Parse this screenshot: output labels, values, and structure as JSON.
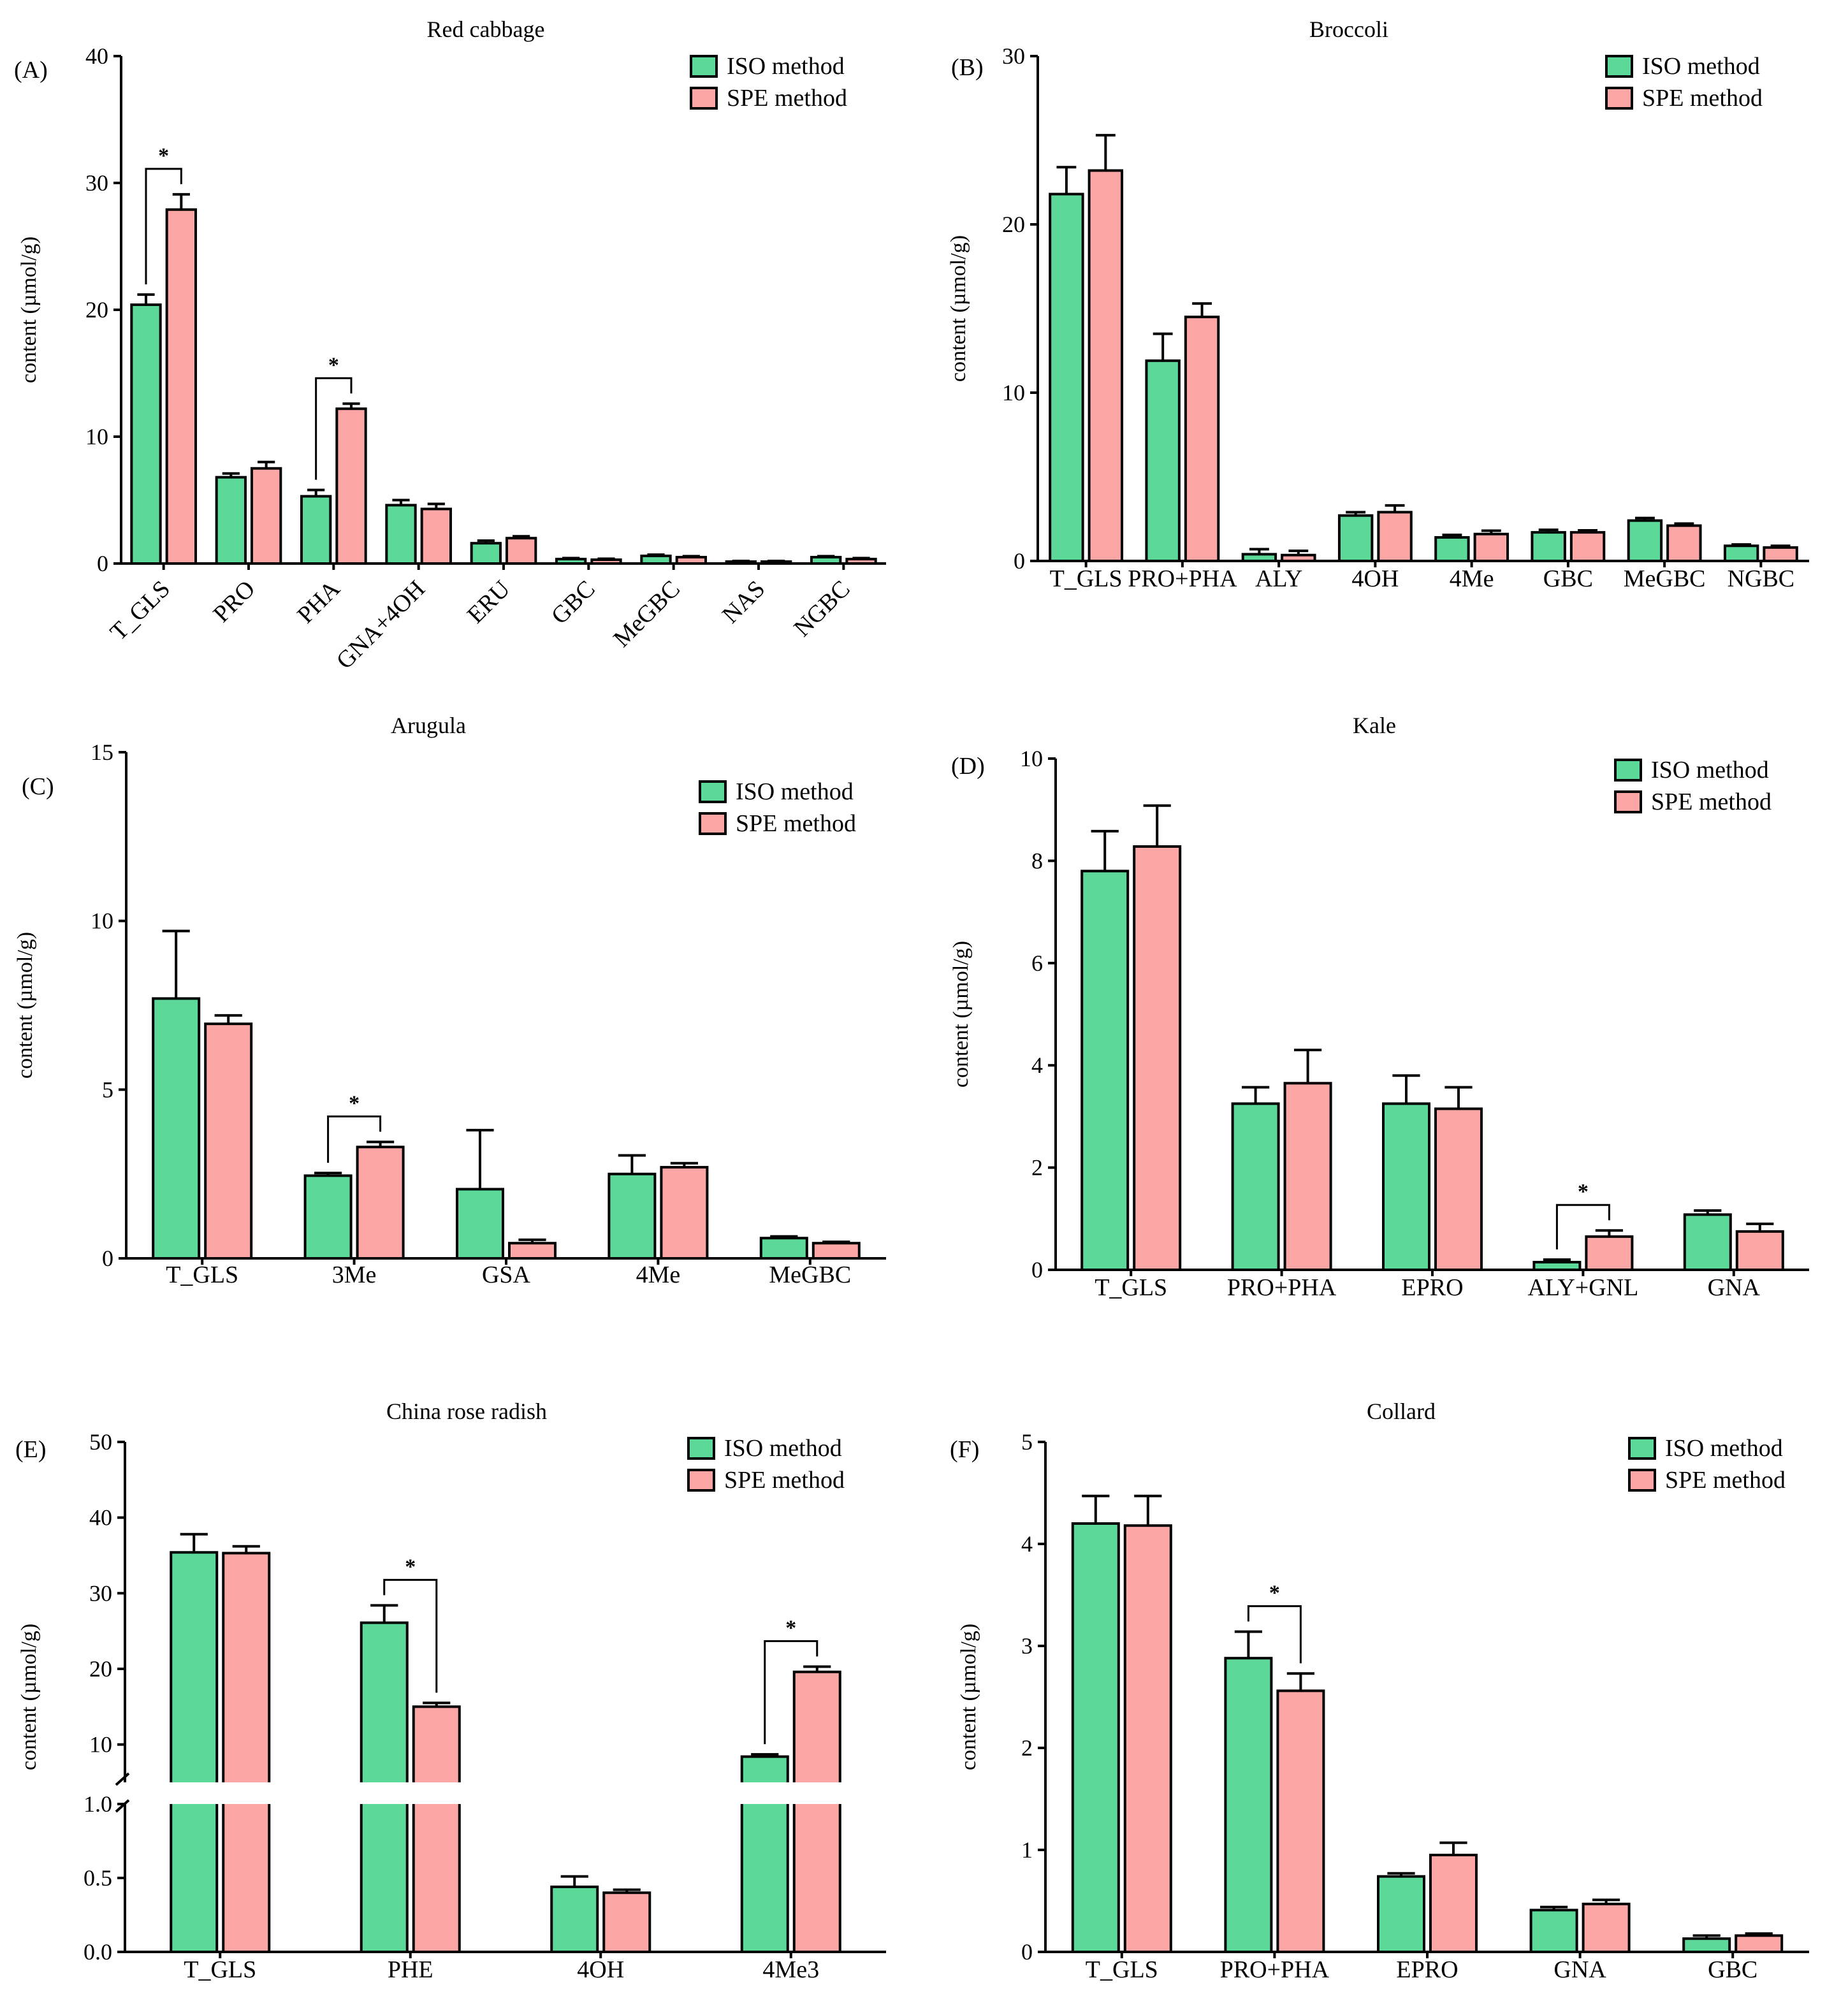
{
  "legend": {
    "iso": "ISO method",
    "spe": "SPE method"
  },
  "colors": {
    "iso": "#5cd898",
    "spe": "#fda6a6",
    "stroke": "#000000"
  },
  "chart_data": [
    {
      "id": "A",
      "panel_label": "(A)",
      "type": "bar",
      "title": "Red cabbage",
      "ylabel": "content (µmol/g)",
      "ylim": [
        0,
        40
      ],
      "yticks": [
        "0",
        "10",
        "20",
        "30",
        "40"
      ],
      "rotate_labels": true,
      "categories": [
        "T_GLS",
        "PRO",
        "PHA",
        "GNA+4OH",
        "ERU",
        "GBC",
        "MeGBC",
        "NAS",
        "NGBC"
      ],
      "series": [
        {
          "name": "ISO method",
          "values": [
            20.4,
            6.8,
            5.3,
            4.6,
            1.6,
            0.35,
            0.6,
            0.15,
            0.5
          ],
          "errors": [
            0.8,
            0.3,
            0.5,
            0.4,
            0.2,
            0.08,
            0.1,
            0.05,
            0.08
          ]
        },
        {
          "name": "SPE method",
          "values": [
            27.9,
            7.5,
            12.2,
            4.3,
            2.0,
            0.3,
            0.5,
            0.15,
            0.35
          ],
          "errors": [
            1.2,
            0.5,
            0.4,
            0.4,
            0.15,
            0.08,
            0.08,
            0.05,
            0.08
          ]
        }
      ],
      "significance": [
        {
          "category_index": 0,
          "label": "*"
        },
        {
          "category_index": 2,
          "label": "*"
        }
      ]
    },
    {
      "id": "B",
      "panel_label": "(B)",
      "type": "bar",
      "title": "Broccoli",
      "ylabel": "content (µmol/g)",
      "ylim": [
        0,
        30
      ],
      "yticks": [
        "0",
        "10",
        "20",
        "30"
      ],
      "rotate_labels": false,
      "categories": [
        "T_GLS",
        "PRO+PHA",
        "ALY",
        "4OH",
        "4Me",
        "GBC",
        "MeGBC",
        "NGBC"
      ],
      "series": [
        {
          "name": "ISO method",
          "values": [
            21.8,
            11.9,
            0.4,
            2.7,
            1.4,
            1.7,
            2.4,
            0.9
          ],
          "errors": [
            1.6,
            1.6,
            0.3,
            0.2,
            0.15,
            0.15,
            0.15,
            0.08
          ]
        },
        {
          "name": "SPE method",
          "values": [
            23.2,
            14.5,
            0.35,
            2.9,
            1.6,
            1.7,
            2.1,
            0.8
          ],
          "errors": [
            2.1,
            0.8,
            0.25,
            0.4,
            0.2,
            0.12,
            0.12,
            0.1
          ]
        }
      ],
      "significance": []
    },
    {
      "id": "C",
      "panel_label": "(C)",
      "type": "bar",
      "title": "Arugula",
      "ylabel": "content (µmol/g)",
      "ylim": [
        0,
        15
      ],
      "yticks": [
        "0",
        "5",
        "10",
        "15"
      ],
      "rotate_labels": false,
      "categories": [
        "T_GLS",
        "3Me",
        "GSA",
        "4Me",
        "MeGBC"
      ],
      "series": [
        {
          "name": "ISO method",
          "values": [
            7.7,
            2.45,
            2.05,
            2.5,
            0.6
          ],
          "errors": [
            2.0,
            0.08,
            1.75,
            0.55,
            0.05
          ]
        },
        {
          "name": "SPE method",
          "values": [
            6.95,
            3.3,
            0.45,
            2.7,
            0.45
          ],
          "errors": [
            0.25,
            0.15,
            0.1,
            0.12,
            0.04
          ]
        }
      ],
      "significance": [
        {
          "category_index": 1,
          "label": "*"
        }
      ]
    },
    {
      "id": "D",
      "panel_label": "(D)",
      "type": "bar",
      "title": "Kale",
      "ylabel": "content (µmol/g)",
      "ylim": [
        0,
        10
      ],
      "yticks": [
        "0",
        "2",
        "4",
        "6",
        "8",
        "10"
      ],
      "rotate_labels": false,
      "categories": [
        "T_GLS",
        "PRO+PHA",
        "EPRO",
        "ALY+GNL",
        "GNA"
      ],
      "series": [
        {
          "name": "ISO method",
          "values": [
            7.8,
            3.25,
            3.25,
            0.15,
            1.08
          ],
          "errors": [
            0.78,
            0.32,
            0.55,
            0.05,
            0.08
          ]
        },
        {
          "name": "SPE method",
          "values": [
            8.28,
            3.65,
            3.15,
            0.65,
            0.75
          ],
          "errors": [
            0.8,
            0.65,
            0.42,
            0.12,
            0.15
          ]
        }
      ],
      "significance": [
        {
          "category_index": 3,
          "label": "*"
        }
      ]
    },
    {
      "id": "E",
      "panel_label": "(E)",
      "type": "bar",
      "title": "China rose radish",
      "ylabel": "content (µmol/g)",
      "broken_axis": true,
      "lower_ylim": [
        0,
        1.0
      ],
      "upper_ylim": [
        5,
        50
      ],
      "yticks_lower": [
        "0.0",
        "0.5",
        "1.0"
      ],
      "yticks_upper": [
        "10",
        "20",
        "30",
        "40",
        "50"
      ],
      "rotate_labels": false,
      "categories": [
        "T_GLS",
        "PHE",
        "4OH",
        "4Me3"
      ],
      "series": [
        {
          "name": "ISO method",
          "values": [
            35.4,
            26.1,
            0.44,
            8.4
          ],
          "errors": [
            2.4,
            2.3,
            0.07,
            0.3
          ]
        },
        {
          "name": "SPE method",
          "values": [
            35.3,
            15.0,
            0.4,
            19.6
          ],
          "errors": [
            0.9,
            0.5,
            0.02,
            0.7
          ]
        }
      ],
      "significance": [
        {
          "category_index": 1,
          "label": "*"
        },
        {
          "category_index": 3,
          "label": "*"
        }
      ]
    },
    {
      "id": "F",
      "panel_label": "(F)",
      "type": "bar",
      "title": "Collard",
      "ylabel": "content (µmol/g)",
      "ylim": [
        0,
        5
      ],
      "yticks": [
        "0",
        "1",
        "2",
        "3",
        "4",
        "5"
      ],
      "rotate_labels": false,
      "categories": [
        "T_GLS",
        "PRO+PHA",
        "EPRO",
        "GNA",
        "GBC"
      ],
      "series": [
        {
          "name": "ISO method",
          "values": [
            4.2,
            2.88,
            0.74,
            0.41,
            0.13
          ],
          "errors": [
            0.27,
            0.26,
            0.03,
            0.03,
            0.03
          ]
        },
        {
          "name": "SPE method",
          "values": [
            4.18,
            2.56,
            0.95,
            0.47,
            0.16
          ],
          "errors": [
            0.29,
            0.17,
            0.12,
            0.04,
            0.02
          ]
        }
      ],
      "significance": [
        {
          "category_index": 1,
          "label": "*"
        }
      ]
    }
  ]
}
